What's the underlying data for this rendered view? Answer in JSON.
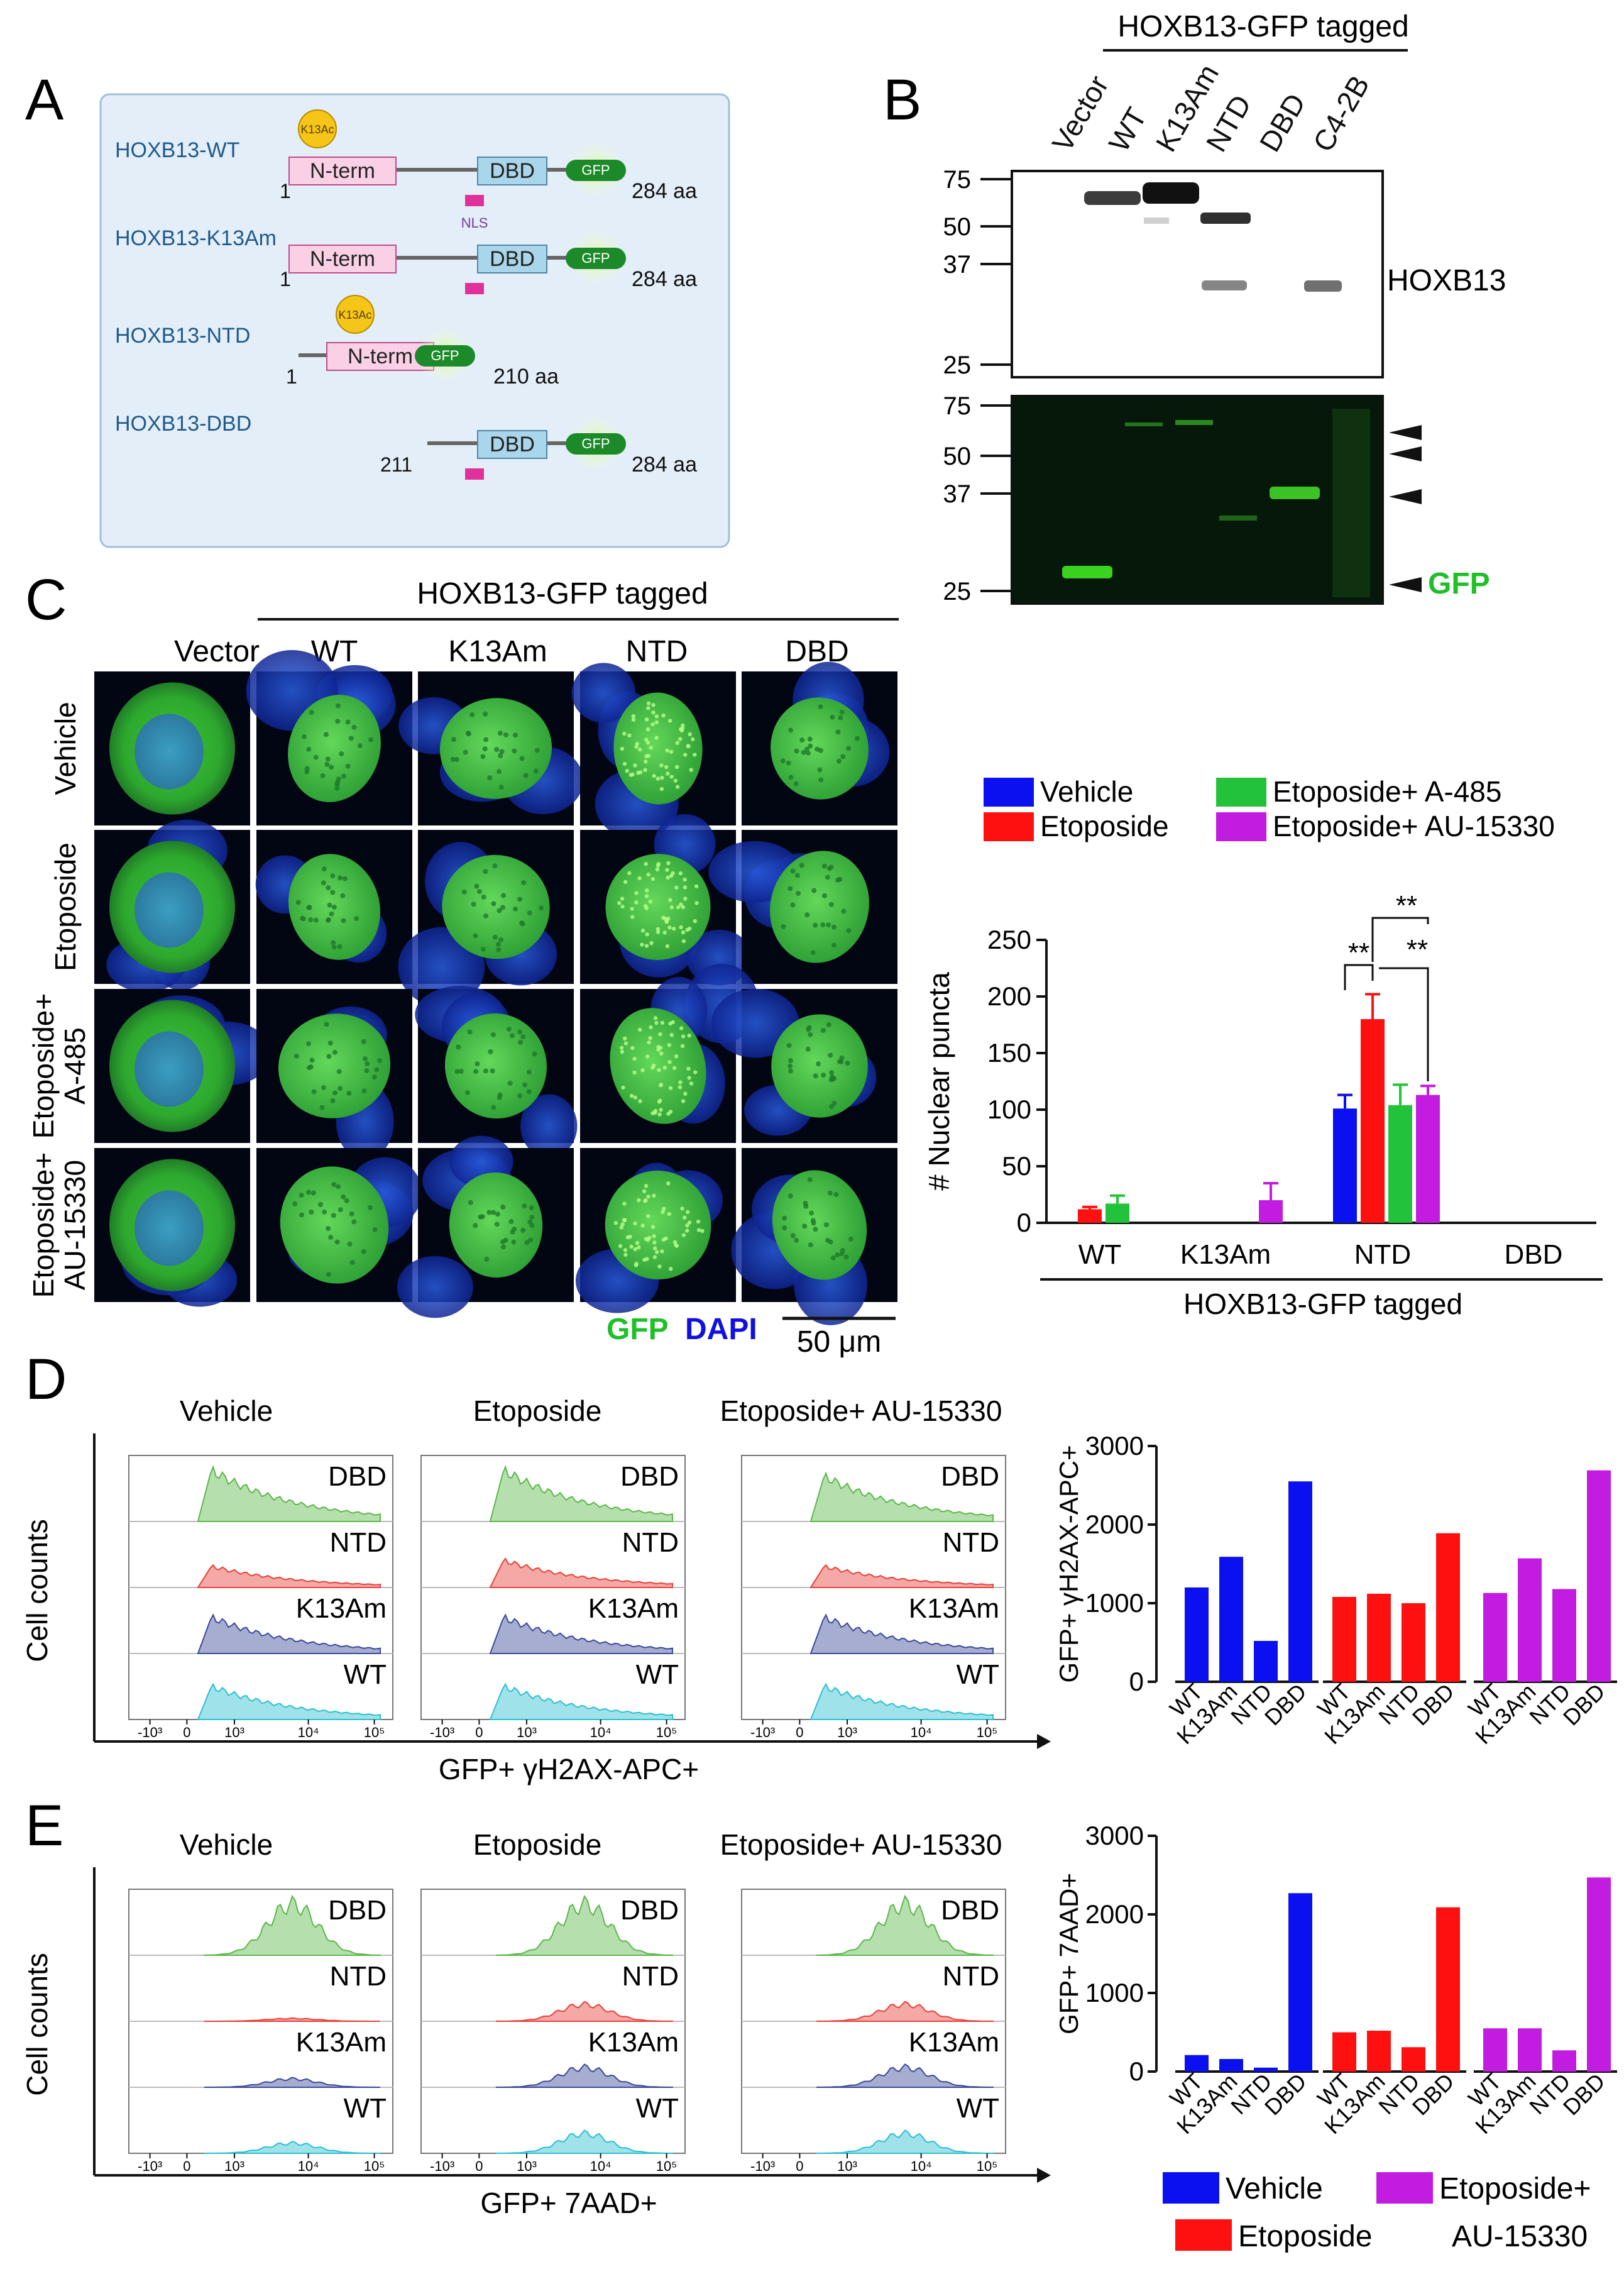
{
  "panels": {
    "A": "A",
    "B": "B",
    "C": "C",
    "D": "D",
    "E": "E"
  },
  "panelA": {
    "constructs": [
      {
        "name": "HOXB13-WT",
        "start": "1",
        "length": "284 aa"
      },
      {
        "name": "HOXB13-K13Am",
        "start": "1",
        "length": "284 aa"
      },
      {
        "name": "HOXB13-NTD",
        "start": "1",
        "length": "210 aa"
      },
      {
        "name": "HOXB13-DBD",
        "start": "211",
        "length": "284 aa"
      }
    ],
    "domain_nterm": "N-term",
    "domain_dbd": "DBD",
    "gfp": "GFP",
    "k13ac": "K13Ac",
    "nls": "NLS"
  },
  "panelB": {
    "header": "HOXB13-GFP tagged",
    "lanes": [
      "Vector",
      "WT",
      "K13Am",
      "NTD",
      "DBD",
      "C4-2B"
    ],
    "mw_top": [
      "75",
      "50",
      "37",
      "25"
    ],
    "mw_bottom": [
      "75",
      "50",
      "37",
      "25"
    ],
    "label_top": "HOXB13",
    "label_gfp": "GFP",
    "colors": {
      "gfp": "#1fbf2a"
    }
  },
  "panelC": {
    "header": "HOXB13-GFP tagged",
    "columns": [
      "Vector",
      "WT",
      "K13Am",
      "NTD",
      "DBD"
    ],
    "rows": [
      "Vehicle",
      "Etoposide",
      "Etoposide+ A-485",
      "Etoposide+ AU-15330"
    ],
    "rows_line1": [
      "Vehicle",
      "Etoposide",
      "Etoposide+",
      "Etoposide+"
    ],
    "rows_line2": [
      "",
      "",
      "A-485",
      "AU-15330"
    ],
    "legend_gfp": "GFP",
    "legend_dapi": "DAPI",
    "scale": "50 μm"
  },
  "chart_data": [
    {
      "id": "C-bar",
      "type": "bar",
      "title": "",
      "xlabel": "HOXB13-GFP tagged",
      "ylabel": "# Nuclear puncta",
      "categories": [
        "WT",
        "K13Am",
        "NTD",
        "DBD"
      ],
      "yticks": [
        "0",
        "50",
        "100",
        "150",
        "200",
        "250"
      ],
      "ylim": [
        0,
        250
      ],
      "series": [
        {
          "name": "Vehicle",
          "color": "#0a10f0",
          "values": [
            0,
            0,
            101,
            0
          ],
          "errors": [
            0,
            0,
            12,
            0
          ]
        },
        {
          "name": "Etoposide",
          "color": "#ff1010",
          "values": [
            12,
            0,
            180,
            0
          ],
          "errors": [
            2,
            0,
            22,
            0
          ]
        },
        {
          "name": "Etoposide+ A-485",
          "color": "#22c33a",
          "values": [
            17,
            0,
            104,
            0
          ],
          "errors": [
            7,
            0,
            18,
            0
          ]
        },
        {
          "name": "Etoposide+ AU-15330",
          "color": "#c21ce0",
          "values": [
            0,
            20,
            113,
            0
          ],
          "errors": [
            0,
            15,
            8,
            0
          ]
        }
      ],
      "significance": [
        "**",
        "**",
        "**"
      ]
    },
    {
      "id": "D-bar",
      "type": "bar",
      "ylabel": "GFP+ γH2AX-APC+",
      "yticks": [
        "0",
        "1000",
        "2000",
        "3000"
      ],
      "ylim": [
        0,
        3000
      ],
      "groups": [
        {
          "name": "Vehicle",
          "color": "#0a10f0",
          "categories": [
            "WT",
            "K13Am",
            "NTD",
            "DBD"
          ],
          "values": [
            1200,
            1590,
            520,
            2550
          ]
        },
        {
          "name": "Etoposide",
          "color": "#ff1010",
          "categories": [
            "WT",
            "K13Am",
            "NTD",
            "DBD"
          ],
          "values": [
            1080,
            1120,
            1000,
            1890
          ]
        },
        {
          "name": "Etoposide+ AU-15330",
          "color": "#c21ce0",
          "categories": [
            "WT",
            "K13Am",
            "NTD",
            "DBD"
          ],
          "values": [
            1130,
            1570,
            1180,
            2690
          ]
        }
      ]
    },
    {
      "id": "E-bar",
      "type": "bar",
      "ylabel": "GFP+ 7AAD+",
      "yticks": [
        "0",
        "1000",
        "2000",
        "3000"
      ],
      "ylim": [
        0,
        3000
      ],
      "groups": [
        {
          "name": "Vehicle",
          "color": "#0a10f0",
          "categories": [
            "WT",
            "K13Am",
            "NTD",
            "DBD"
          ],
          "values": [
            210,
            160,
            50,
            2270
          ]
        },
        {
          "name": "Etoposide",
          "color": "#ff1010",
          "categories": [
            "WT",
            "K13Am",
            "NTD",
            "DBD"
          ],
          "values": [
            500,
            520,
            310,
            2090
          ]
        },
        {
          "name": "Etoposide+ AU-15330",
          "color": "#c21ce0",
          "categories": [
            "WT",
            "K13Am",
            "NTD",
            "DBD"
          ],
          "values": [
            550,
            550,
            270,
            2470
          ]
        }
      ]
    }
  ],
  "flow": {
    "D": {
      "conditions": [
        "Vehicle",
        "Etoposide",
        "Etoposide+ AU-15330"
      ],
      "xlabel": "GFP+ γH2AX-APC+",
      "ylabel": "Cell counts"
    },
    "E": {
      "conditions": [
        "Vehicle",
        "Etoposide",
        "Etoposide+ AU-15330"
      ],
      "xlabel": "GFP+ 7AAD+",
      "ylabel": "Cell counts"
    },
    "tracks": [
      "DBD",
      "NTD",
      "K13Am",
      "WT"
    ],
    "track_colors": [
      "#5cb84a",
      "#e8413a",
      "#3a4a9a",
      "#2dbfd0"
    ],
    "xticks": [
      "-10³",
      "0",
      "10³",
      "10⁴",
      "10⁵"
    ]
  },
  "legendBottom": [
    {
      "name": "Vehicle",
      "color": "#0a10f0"
    },
    {
      "name": "Etoposide",
      "color": "#ff1010"
    },
    {
      "name": "Etoposide+",
      "color": "#c21ce0"
    },
    {
      "name": "AU-15330",
      "color": "#c21ce0"
    }
  ]
}
